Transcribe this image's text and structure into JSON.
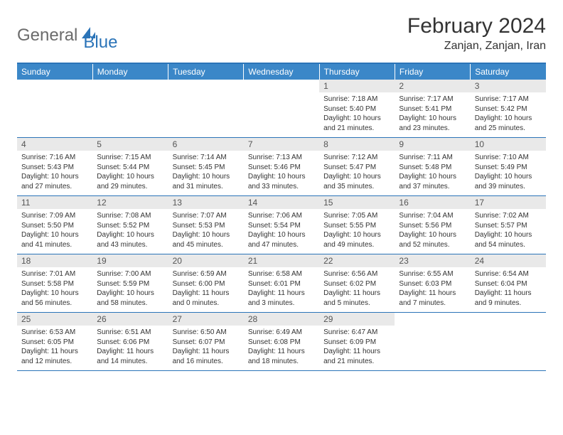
{
  "brand": {
    "general": "General",
    "blue": "Blue",
    "accent_color": "#2b74b8",
    "gray_color": "#6b6b6b"
  },
  "title": "February 2024",
  "location": "Zanjan, Zanjan, Iran",
  "colors": {
    "header_bg": "#3b87c8",
    "header_text": "#ffffff",
    "daynum_bg": "#e9e9e9",
    "rule": "#2b74b8",
    "body_text": "#333333"
  },
  "day_names": [
    "Sunday",
    "Monday",
    "Tuesday",
    "Wednesday",
    "Thursday",
    "Friday",
    "Saturday"
  ],
  "weeks": [
    [
      null,
      null,
      null,
      null,
      {
        "n": "1",
        "sunrise": "Sunrise: 7:18 AM",
        "sunset": "Sunset: 5:40 PM",
        "daylight": "Daylight: 10 hours and 21 minutes."
      },
      {
        "n": "2",
        "sunrise": "Sunrise: 7:17 AM",
        "sunset": "Sunset: 5:41 PM",
        "daylight": "Daylight: 10 hours and 23 minutes."
      },
      {
        "n": "3",
        "sunrise": "Sunrise: 7:17 AM",
        "sunset": "Sunset: 5:42 PM",
        "daylight": "Daylight: 10 hours and 25 minutes."
      }
    ],
    [
      {
        "n": "4",
        "sunrise": "Sunrise: 7:16 AM",
        "sunset": "Sunset: 5:43 PM",
        "daylight": "Daylight: 10 hours and 27 minutes."
      },
      {
        "n": "5",
        "sunrise": "Sunrise: 7:15 AM",
        "sunset": "Sunset: 5:44 PM",
        "daylight": "Daylight: 10 hours and 29 minutes."
      },
      {
        "n": "6",
        "sunrise": "Sunrise: 7:14 AM",
        "sunset": "Sunset: 5:45 PM",
        "daylight": "Daylight: 10 hours and 31 minutes."
      },
      {
        "n": "7",
        "sunrise": "Sunrise: 7:13 AM",
        "sunset": "Sunset: 5:46 PM",
        "daylight": "Daylight: 10 hours and 33 minutes."
      },
      {
        "n": "8",
        "sunrise": "Sunrise: 7:12 AM",
        "sunset": "Sunset: 5:47 PM",
        "daylight": "Daylight: 10 hours and 35 minutes."
      },
      {
        "n": "9",
        "sunrise": "Sunrise: 7:11 AM",
        "sunset": "Sunset: 5:48 PM",
        "daylight": "Daylight: 10 hours and 37 minutes."
      },
      {
        "n": "10",
        "sunrise": "Sunrise: 7:10 AM",
        "sunset": "Sunset: 5:49 PM",
        "daylight": "Daylight: 10 hours and 39 minutes."
      }
    ],
    [
      {
        "n": "11",
        "sunrise": "Sunrise: 7:09 AM",
        "sunset": "Sunset: 5:50 PM",
        "daylight": "Daylight: 10 hours and 41 minutes."
      },
      {
        "n": "12",
        "sunrise": "Sunrise: 7:08 AM",
        "sunset": "Sunset: 5:52 PM",
        "daylight": "Daylight: 10 hours and 43 minutes."
      },
      {
        "n": "13",
        "sunrise": "Sunrise: 7:07 AM",
        "sunset": "Sunset: 5:53 PM",
        "daylight": "Daylight: 10 hours and 45 minutes."
      },
      {
        "n": "14",
        "sunrise": "Sunrise: 7:06 AM",
        "sunset": "Sunset: 5:54 PM",
        "daylight": "Daylight: 10 hours and 47 minutes."
      },
      {
        "n": "15",
        "sunrise": "Sunrise: 7:05 AM",
        "sunset": "Sunset: 5:55 PM",
        "daylight": "Daylight: 10 hours and 49 minutes."
      },
      {
        "n": "16",
        "sunrise": "Sunrise: 7:04 AM",
        "sunset": "Sunset: 5:56 PM",
        "daylight": "Daylight: 10 hours and 52 minutes."
      },
      {
        "n": "17",
        "sunrise": "Sunrise: 7:02 AM",
        "sunset": "Sunset: 5:57 PM",
        "daylight": "Daylight: 10 hours and 54 minutes."
      }
    ],
    [
      {
        "n": "18",
        "sunrise": "Sunrise: 7:01 AM",
        "sunset": "Sunset: 5:58 PM",
        "daylight": "Daylight: 10 hours and 56 minutes."
      },
      {
        "n": "19",
        "sunrise": "Sunrise: 7:00 AM",
        "sunset": "Sunset: 5:59 PM",
        "daylight": "Daylight: 10 hours and 58 minutes."
      },
      {
        "n": "20",
        "sunrise": "Sunrise: 6:59 AM",
        "sunset": "Sunset: 6:00 PM",
        "daylight": "Daylight: 11 hours and 0 minutes."
      },
      {
        "n": "21",
        "sunrise": "Sunrise: 6:58 AM",
        "sunset": "Sunset: 6:01 PM",
        "daylight": "Daylight: 11 hours and 3 minutes."
      },
      {
        "n": "22",
        "sunrise": "Sunrise: 6:56 AM",
        "sunset": "Sunset: 6:02 PM",
        "daylight": "Daylight: 11 hours and 5 minutes."
      },
      {
        "n": "23",
        "sunrise": "Sunrise: 6:55 AM",
        "sunset": "Sunset: 6:03 PM",
        "daylight": "Daylight: 11 hours and 7 minutes."
      },
      {
        "n": "24",
        "sunrise": "Sunrise: 6:54 AM",
        "sunset": "Sunset: 6:04 PM",
        "daylight": "Daylight: 11 hours and 9 minutes."
      }
    ],
    [
      {
        "n": "25",
        "sunrise": "Sunrise: 6:53 AM",
        "sunset": "Sunset: 6:05 PM",
        "daylight": "Daylight: 11 hours and 12 minutes."
      },
      {
        "n": "26",
        "sunrise": "Sunrise: 6:51 AM",
        "sunset": "Sunset: 6:06 PM",
        "daylight": "Daylight: 11 hours and 14 minutes."
      },
      {
        "n": "27",
        "sunrise": "Sunrise: 6:50 AM",
        "sunset": "Sunset: 6:07 PM",
        "daylight": "Daylight: 11 hours and 16 minutes."
      },
      {
        "n": "28",
        "sunrise": "Sunrise: 6:49 AM",
        "sunset": "Sunset: 6:08 PM",
        "daylight": "Daylight: 11 hours and 18 minutes."
      },
      {
        "n": "29",
        "sunrise": "Sunrise: 6:47 AM",
        "sunset": "Sunset: 6:09 PM",
        "daylight": "Daylight: 11 hours and 21 minutes."
      },
      null,
      null
    ]
  ]
}
